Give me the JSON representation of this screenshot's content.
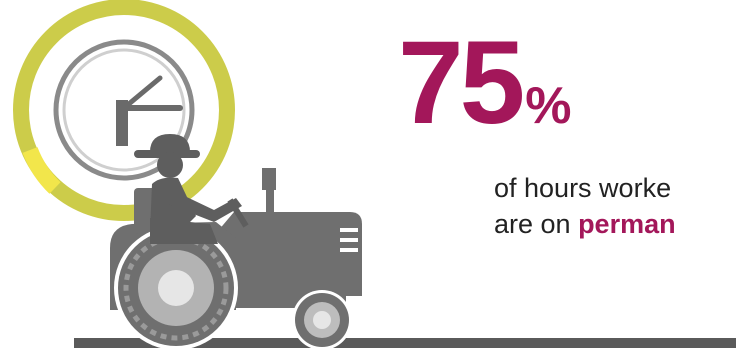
{
  "stat": {
    "number": "75",
    "unit": "%"
  },
  "caption": {
    "line1": "of hours worke",
    "line2_prefix": "are on ",
    "line2_highlight": "perman"
  },
  "colors": {
    "accent": "#a3175a",
    "ring": "#cccc4a",
    "ring_highlight": "#f2e64b",
    "tractor": "#6f6f6f",
    "ground": "#5a5a5a"
  },
  "icons": [
    "clock-icon",
    "tractor-icon",
    "farmer-icon"
  ]
}
